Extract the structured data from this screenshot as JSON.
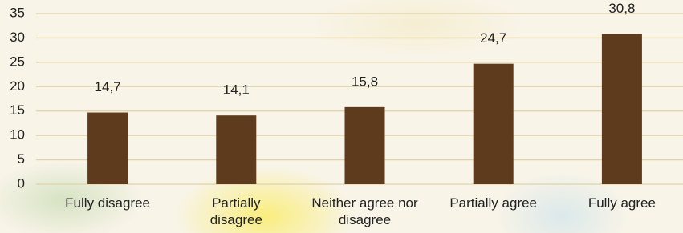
{
  "chart_data": {
    "type": "bar",
    "categories": [
      "Fully disagree",
      "Partially disagree",
      "Neither agree nor disagree",
      "Partially agree",
      "Fully agree"
    ],
    "values": [
      14.7,
      14.1,
      15.8,
      24.7,
      30.8
    ],
    "value_labels": [
      "14,7",
      "14,1",
      "15,8",
      "24,7",
      "30,8"
    ],
    "color": "#5e3b1d",
    "ylim": [
      0,
      35
    ],
    "yticks": [
      0,
      5,
      10,
      15,
      20,
      25,
      30,
      35
    ],
    "grid": true
  }
}
